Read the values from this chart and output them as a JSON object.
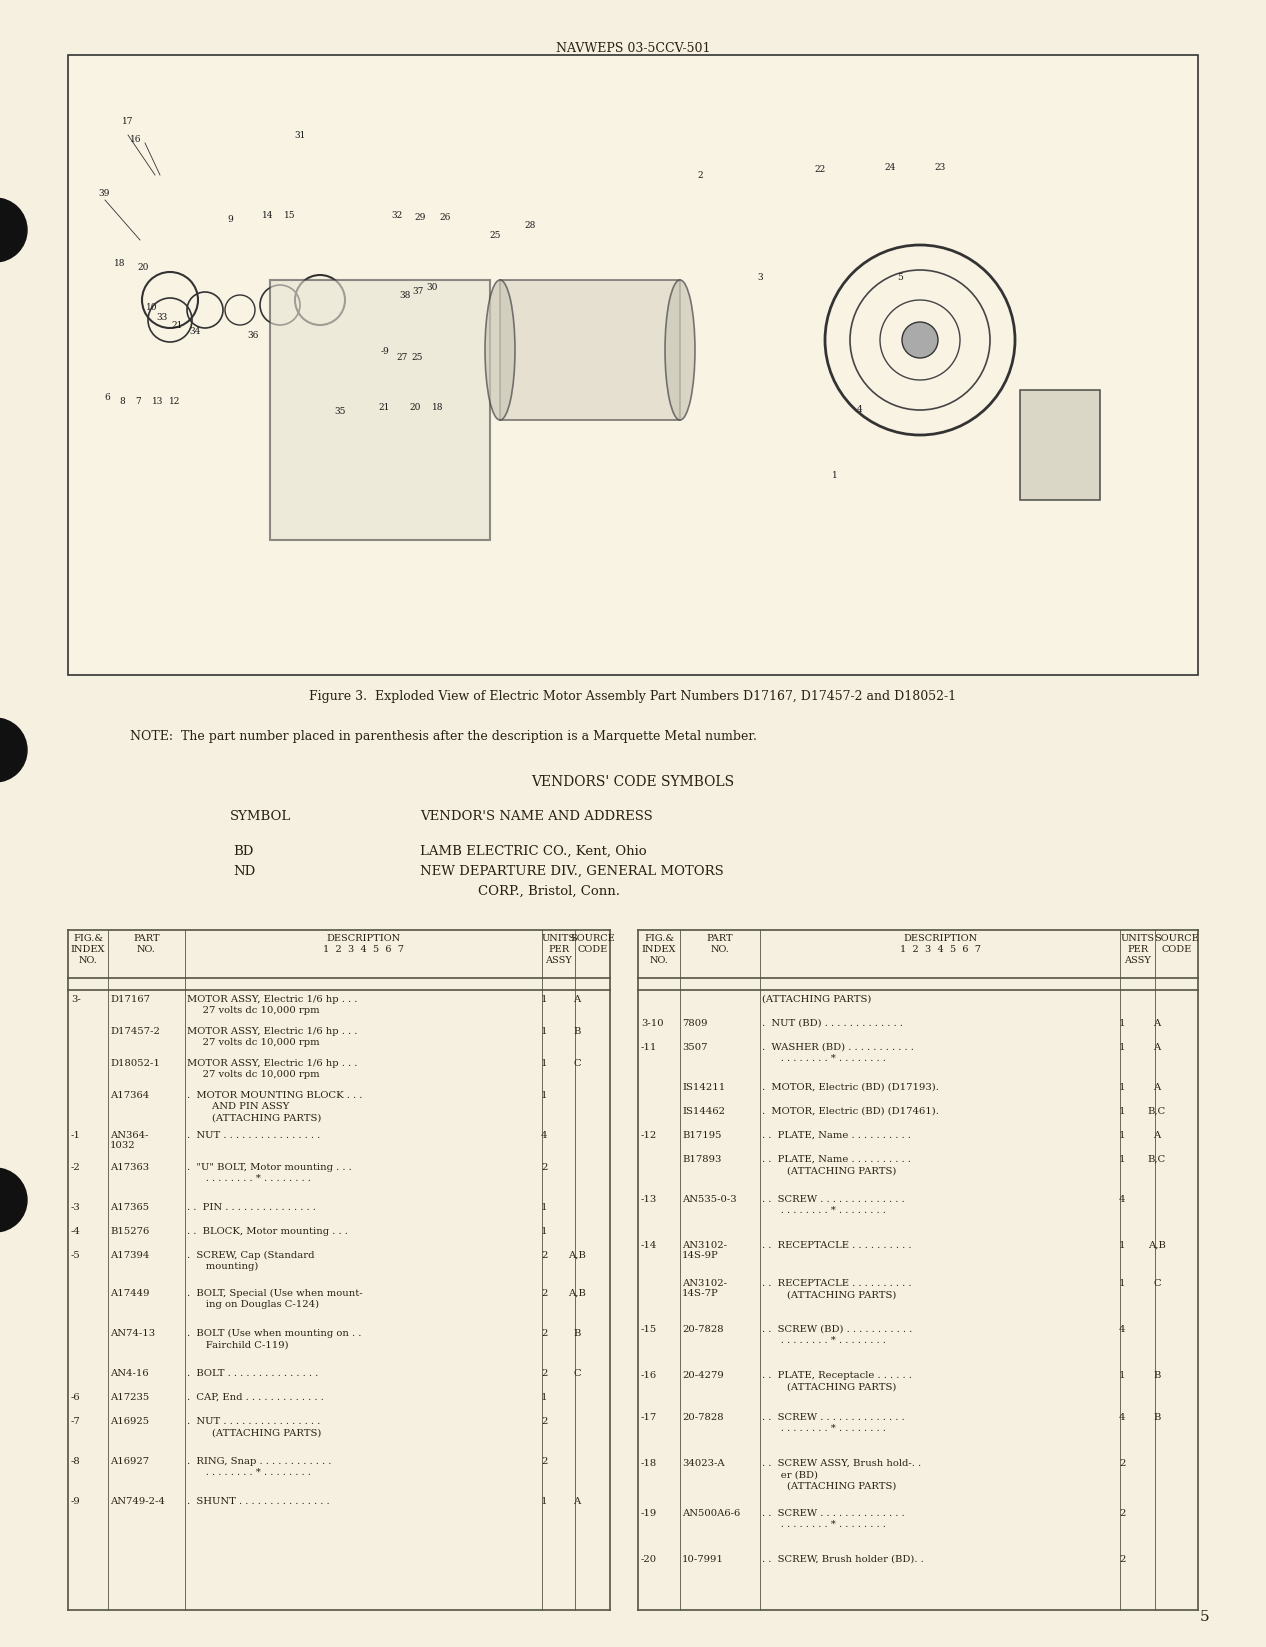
{
  "page_bg": "#f5f0e0",
  "header_text": "NAVWEPS 03-5CCV-501",
  "figure_caption": "Figure 3.  Exploded View of Electric Motor Assembly Part Numbers D17167, D17457-2 and D18052-1",
  "note_text": "NOTE:  The part number placed in parenthesis after the description is a Marquette Metal number.",
  "vendors_title": "VENDORS' CODE SYMBOLS",
  "symbol_header": "SYMBOL",
  "vendor_name_header": "VENDOR'S NAME AND ADDRESS",
  "vendors": [
    {
      "symbol": "BD",
      "name": "LAMB ELECTRIC CO., Kent, Ohio"
    },
    {
      "symbol": "ND",
      "name": "NEW DEPARTURE DIV., GENERAL MOTORS\n        CORP., Bristol, Conn."
    }
  ],
  "table_headers": [
    "FIG.&\nINDEX\nNO.",
    "PART\nNO.",
    "DESCRIPTION\n1  2  3  4  5  6  7",
    "UNITS\nPER\nASSY",
    "SOURCE\nCODE"
  ],
  "left_table_rows": [
    {
      "fig": "3-",
      "part": "D17167",
      "desc": "MOTOR ASSY, Electric 1/6 hp . . .\n     27 volts dc 10,000 rpm",
      "units": "1",
      "code": "A"
    },
    {
      "fig": "",
      "part": "D17457-2",
      "desc": "MOTOR ASSY, Electric 1/6 hp . . .\n     27 volts dc 10,000 rpm",
      "units": "1",
      "code": "B"
    },
    {
      "fig": "",
      "part": "D18052-1",
      "desc": "MOTOR ASSY, Electric 1/6 hp . . .\n     27 volts dc 10,000 rpm",
      "units": "1",
      "code": "C"
    },
    {
      "fig": "",
      "part": "A17364",
      "desc": ".  MOTOR MOUNTING BLOCK . . .\n        AND PIN ASSY\n        (ATTACHING PARTS)",
      "units": "1",
      "code": ""
    },
    {
      "fig": "-1",
      "part": "AN364-\n1032",
      "desc": ".  NUT . . . . . . . . . . . . . . . .",
      "units": "4",
      "code": ""
    },
    {
      "fig": "-2",
      "part": "A17363",
      "desc": ".  \"U\" BOLT, Motor mounting . . .\n      . . . . . . . . * . . . . . . . .",
      "units": "2",
      "code": ""
    },
    {
      "fig": "-3",
      "part": "A17365",
      "desc": ". .  PIN . . . . . . . . . . . . . . .",
      "units": "1",
      "code": ""
    },
    {
      "fig": "-4",
      "part": "B15276",
      "desc": ". .  BLOCK, Motor mounting . . .",
      "units": "1",
      "code": ""
    },
    {
      "fig": "-5",
      "part": "A17394",
      "desc": ".  SCREW, Cap (Standard\n      mounting)",
      "units": "2",
      "code": "A,B"
    },
    {
      "fig": "",
      "part": "A17449",
      "desc": ".  BOLT, Special (Use when mount-\n      ing on Douglas C-124)",
      "units": "2",
      "code": "A,B"
    },
    {
      "fig": "",
      "part": "AN74-13",
      "desc": ".  BOLT (Use when mounting on . .\n      Fairchild C-119)",
      "units": "2",
      "code": "B"
    },
    {
      "fig": "",
      "part": "AN4-16",
      "desc": ".  BOLT . . . . . . . . . . . . . . .",
      "units": "2",
      "code": "C"
    },
    {
      "fig": "-6",
      "part": "A17235",
      "desc": ".  CAP, End . . . . . . . . . . . . .",
      "units": "1",
      "code": ""
    },
    {
      "fig": "-7",
      "part": "A16925",
      "desc": ".  NUT . . . . . . . . . . . . . . . .\n        (ATTACHING PARTS)",
      "units": "2",
      "code": ""
    },
    {
      "fig": "-8",
      "part": "A16927",
      "desc": ".  RING, Snap . . . . . . . . . . . .\n      . . . . . . . . * . . . . . . . .",
      "units": "2",
      "code": ""
    },
    {
      "fig": "-9",
      "part": "AN749-2-4",
      "desc": ".  SHUNT . . . . . . . . . . . . . . .",
      "units": "1",
      "code": "A"
    }
  ],
  "right_table_rows": [
    {
      "fig": "",
      "part": "",
      "desc": "(ATTACHING PARTS)",
      "units": "",
      "code": ""
    },
    {
      "fig": "3-10",
      "part": "7809",
      "desc": ".  NUT (BD) . . . . . . . . . . . . .",
      "units": "1",
      "code": "A"
    },
    {
      "fig": "-11",
      "part": "3507",
      "desc": ".  WASHER (BD) . . . . . . . . . . .\n      . . . . . . . . * . . . . . . . .",
      "units": "1",
      "code": "A"
    },
    {
      "fig": "",
      "part": "IS14211",
      "desc": ".  MOTOR, Electric (BD) (D17193).",
      "units": "1",
      "code": "A"
    },
    {
      "fig": "",
      "part": "IS14462",
      "desc": ".  MOTOR, Electric (BD) (D17461).",
      "units": "1",
      "code": "B,C"
    },
    {
      "fig": "-12",
      "part": "B17195",
      "desc": ". .  PLATE, Name . . . . . . . . . .",
      "units": "1",
      "code": "A"
    },
    {
      "fig": "",
      "part": "B17893",
      "desc": ". .  PLATE, Name . . . . . . . . . .\n        (ATTACHING PARTS)",
      "units": "1",
      "code": "B,C"
    },
    {
      "fig": "-13",
      "part": "AN535-0-3",
      "desc": ". .  SCREW . . . . . . . . . . . . . .\n      . . . . . . . . * . . . . . . . .",
      "units": "4",
      "code": ""
    },
    {
      "fig": "-14",
      "part": "AN3102-\n14S-9P",
      "desc": ". .  RECEPTACLE . . . . . . . . . .",
      "units": "1",
      "code": "A,B"
    },
    {
      "fig": "",
      "part": "AN3102-\n14S-7P",
      "desc": ". .  RECEPTACLE . . . . . . . . . .\n        (ATTACHING PARTS)",
      "units": "1",
      "code": "C"
    },
    {
      "fig": "-15",
      "part": "20-7828",
      "desc": ". .  SCREW (BD) . . . . . . . . . . .\n      . . . . . . . . * . . . . . . . .",
      "units": "4",
      "code": ""
    },
    {
      "fig": "-16",
      "part": "20-4279",
      "desc": ". .  PLATE, Receptacle . . . . . .\n        (ATTACHING PARTS)",
      "units": "1",
      "code": "B"
    },
    {
      "fig": "-17",
      "part": "20-7828",
      "desc": ". .  SCREW . . . . . . . . . . . . . .\n      . . . . . . . . * . . . . . . . .",
      "units": "4",
      "code": "B"
    },
    {
      "fig": "-18",
      "part": "34023-A",
      "desc": ". .  SCREW ASSY, Brush hold-. .\n      er (BD)\n        (ATTACHING PARTS)",
      "units": "2",
      "code": ""
    },
    {
      "fig": "-19",
      "part": "AN500A6-6",
      "desc": ". .  SCREW . . . . . . . . . . . . . .\n      . . . . . . . . * . . . . . . . .",
      "units": "2",
      "code": ""
    },
    {
      "fig": "-20",
      "part": "10-7991",
      "desc": ". .  SCREW, Brush holder (BD). .",
      "units": "2",
      "code": ""
    }
  ],
  "page_number": "5",
  "text_color": "#2a2010",
  "border_color": "#333333",
  "table_border": "#555544"
}
